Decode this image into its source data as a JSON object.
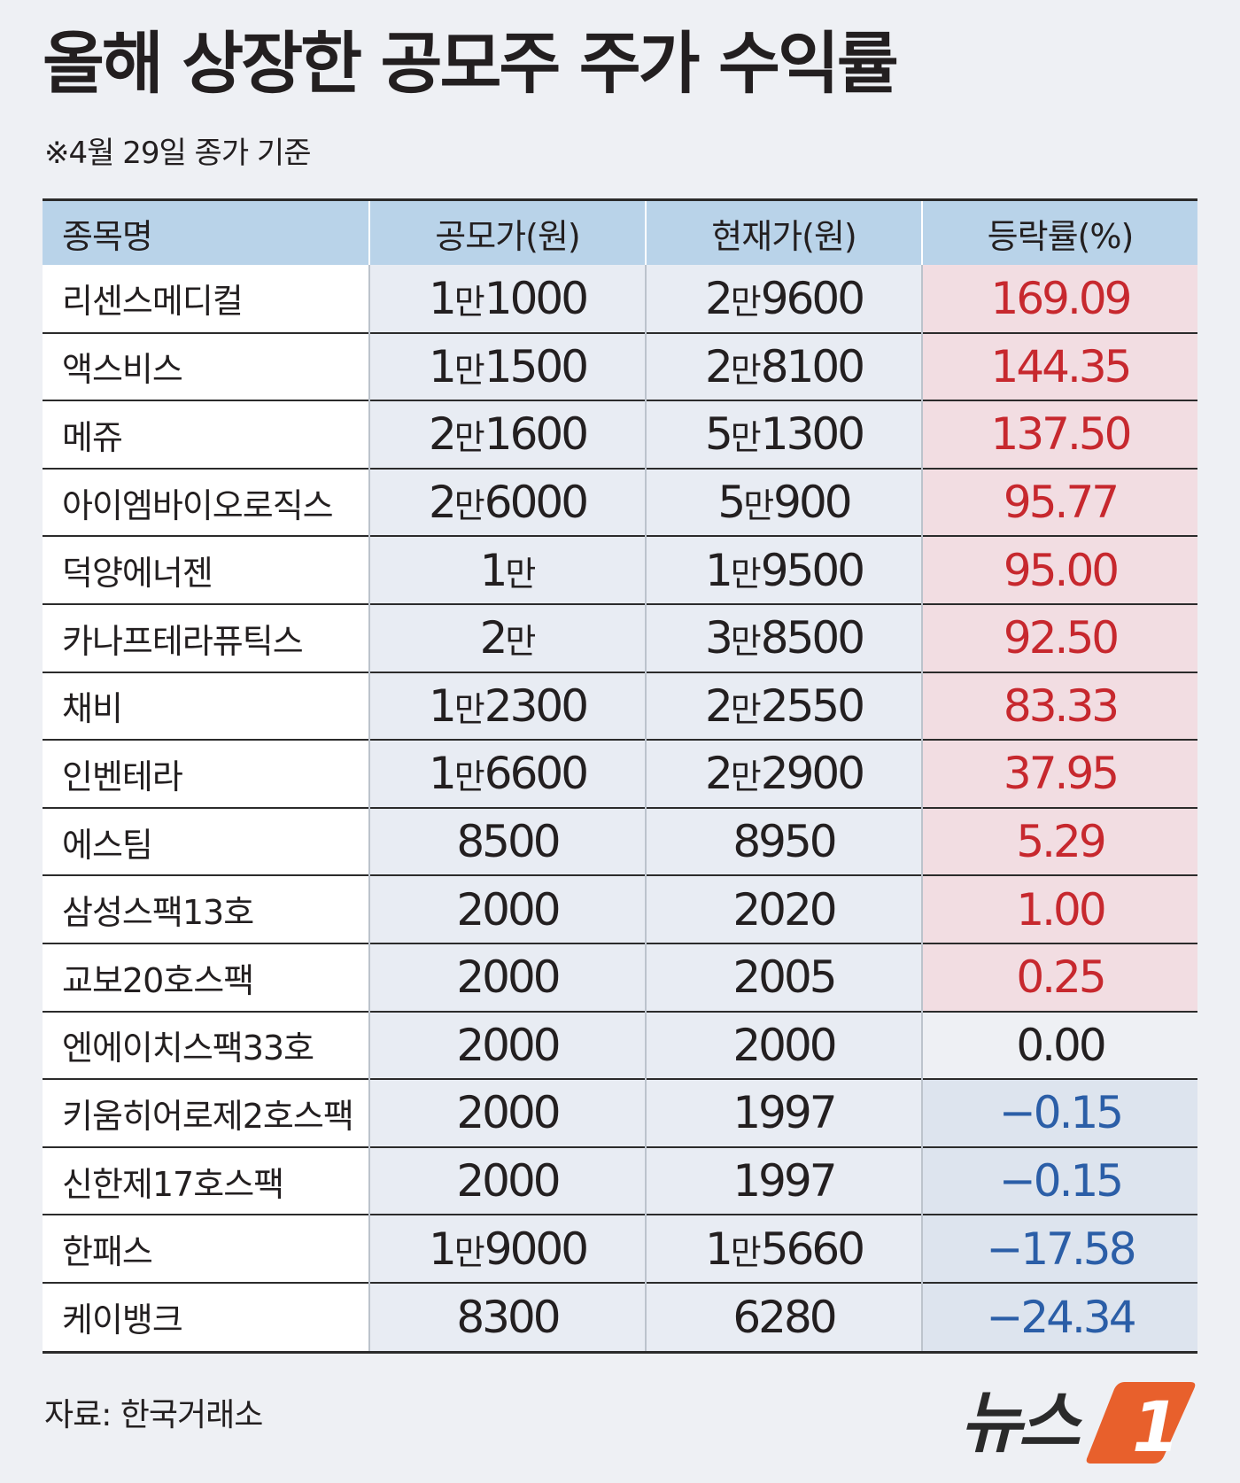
{
  "title": "올해 상장한 공모주 주가 수익률",
  "subtitle": "※4월 29일 종가 기준",
  "colors": {
    "up": "#c7282e",
    "down": "#2b5ea7",
    "header_bg": "#b9d3e9",
    "up_bg": "#f2dde2",
    "down_bg": "#dde4ee",
    "logo_orange": "#e8602c"
  },
  "chart_data": {
    "type": "table",
    "columns": [
      "종목명",
      "공모가(원)",
      "현재가(원)",
      "등락률(%)"
    ],
    "rows": [
      {
        "name": "리센스메디컬",
        "offer": "1만1000",
        "current": "2만9600",
        "change": "169.09",
        "dir": "up"
      },
      {
        "name": "액스비스",
        "offer": "1만1500",
        "current": "2만8100",
        "change": "144.35",
        "dir": "up"
      },
      {
        "name": "메쥬",
        "offer": "2만1600",
        "current": "5만1300",
        "change": "137.50",
        "dir": "up"
      },
      {
        "name": "아이엠바이오로직스",
        "offer": "2만6000",
        "current": "5만900",
        "change": "95.77",
        "dir": "up"
      },
      {
        "name": "덕양에너젠",
        "offer": "1만",
        "current": "1만9500",
        "change": "95.00",
        "dir": "up"
      },
      {
        "name": "카나프테라퓨틱스",
        "offer": "2만",
        "current": "3만8500",
        "change": "92.50",
        "dir": "up"
      },
      {
        "name": "채비",
        "offer": "1만2300",
        "current": "2만2550",
        "change": "83.33",
        "dir": "up"
      },
      {
        "name": "인벤테라",
        "offer": "1만6600",
        "current": "2만2900",
        "change": "37.95",
        "dir": "up"
      },
      {
        "name": "에스팀",
        "offer": "8500",
        "current": "8950",
        "change": "5.29",
        "dir": "up"
      },
      {
        "name": "삼성스팩13호",
        "offer": "2000",
        "current": "2020",
        "change": "1.00",
        "dir": "up"
      },
      {
        "name": "교보20호스팩",
        "offer": "2000",
        "current": "2005",
        "change": "0.25",
        "dir": "up"
      },
      {
        "name": "엔에이치스팩33호",
        "offer": "2000",
        "current": "2000",
        "change": "0.00",
        "dir": "flat"
      },
      {
        "name": "키움히어로제2호스팩",
        "offer": "2000",
        "current": "1997",
        "change": "−0.15",
        "dir": "down"
      },
      {
        "name": "신한제17호스팩",
        "offer": "2000",
        "current": "1997",
        "change": "−0.15",
        "dir": "down"
      },
      {
        "name": "한패스",
        "offer": "1만9000",
        "current": "1만5660",
        "change": "−17.58",
        "dir": "down"
      },
      {
        "name": "케이뱅크",
        "offer": "8300",
        "current": "6280",
        "change": "−24.34",
        "dir": "down"
      }
    ]
  },
  "source": "자료: 한국거래소",
  "logo": {
    "text": "뉴스",
    "mark": "1"
  }
}
